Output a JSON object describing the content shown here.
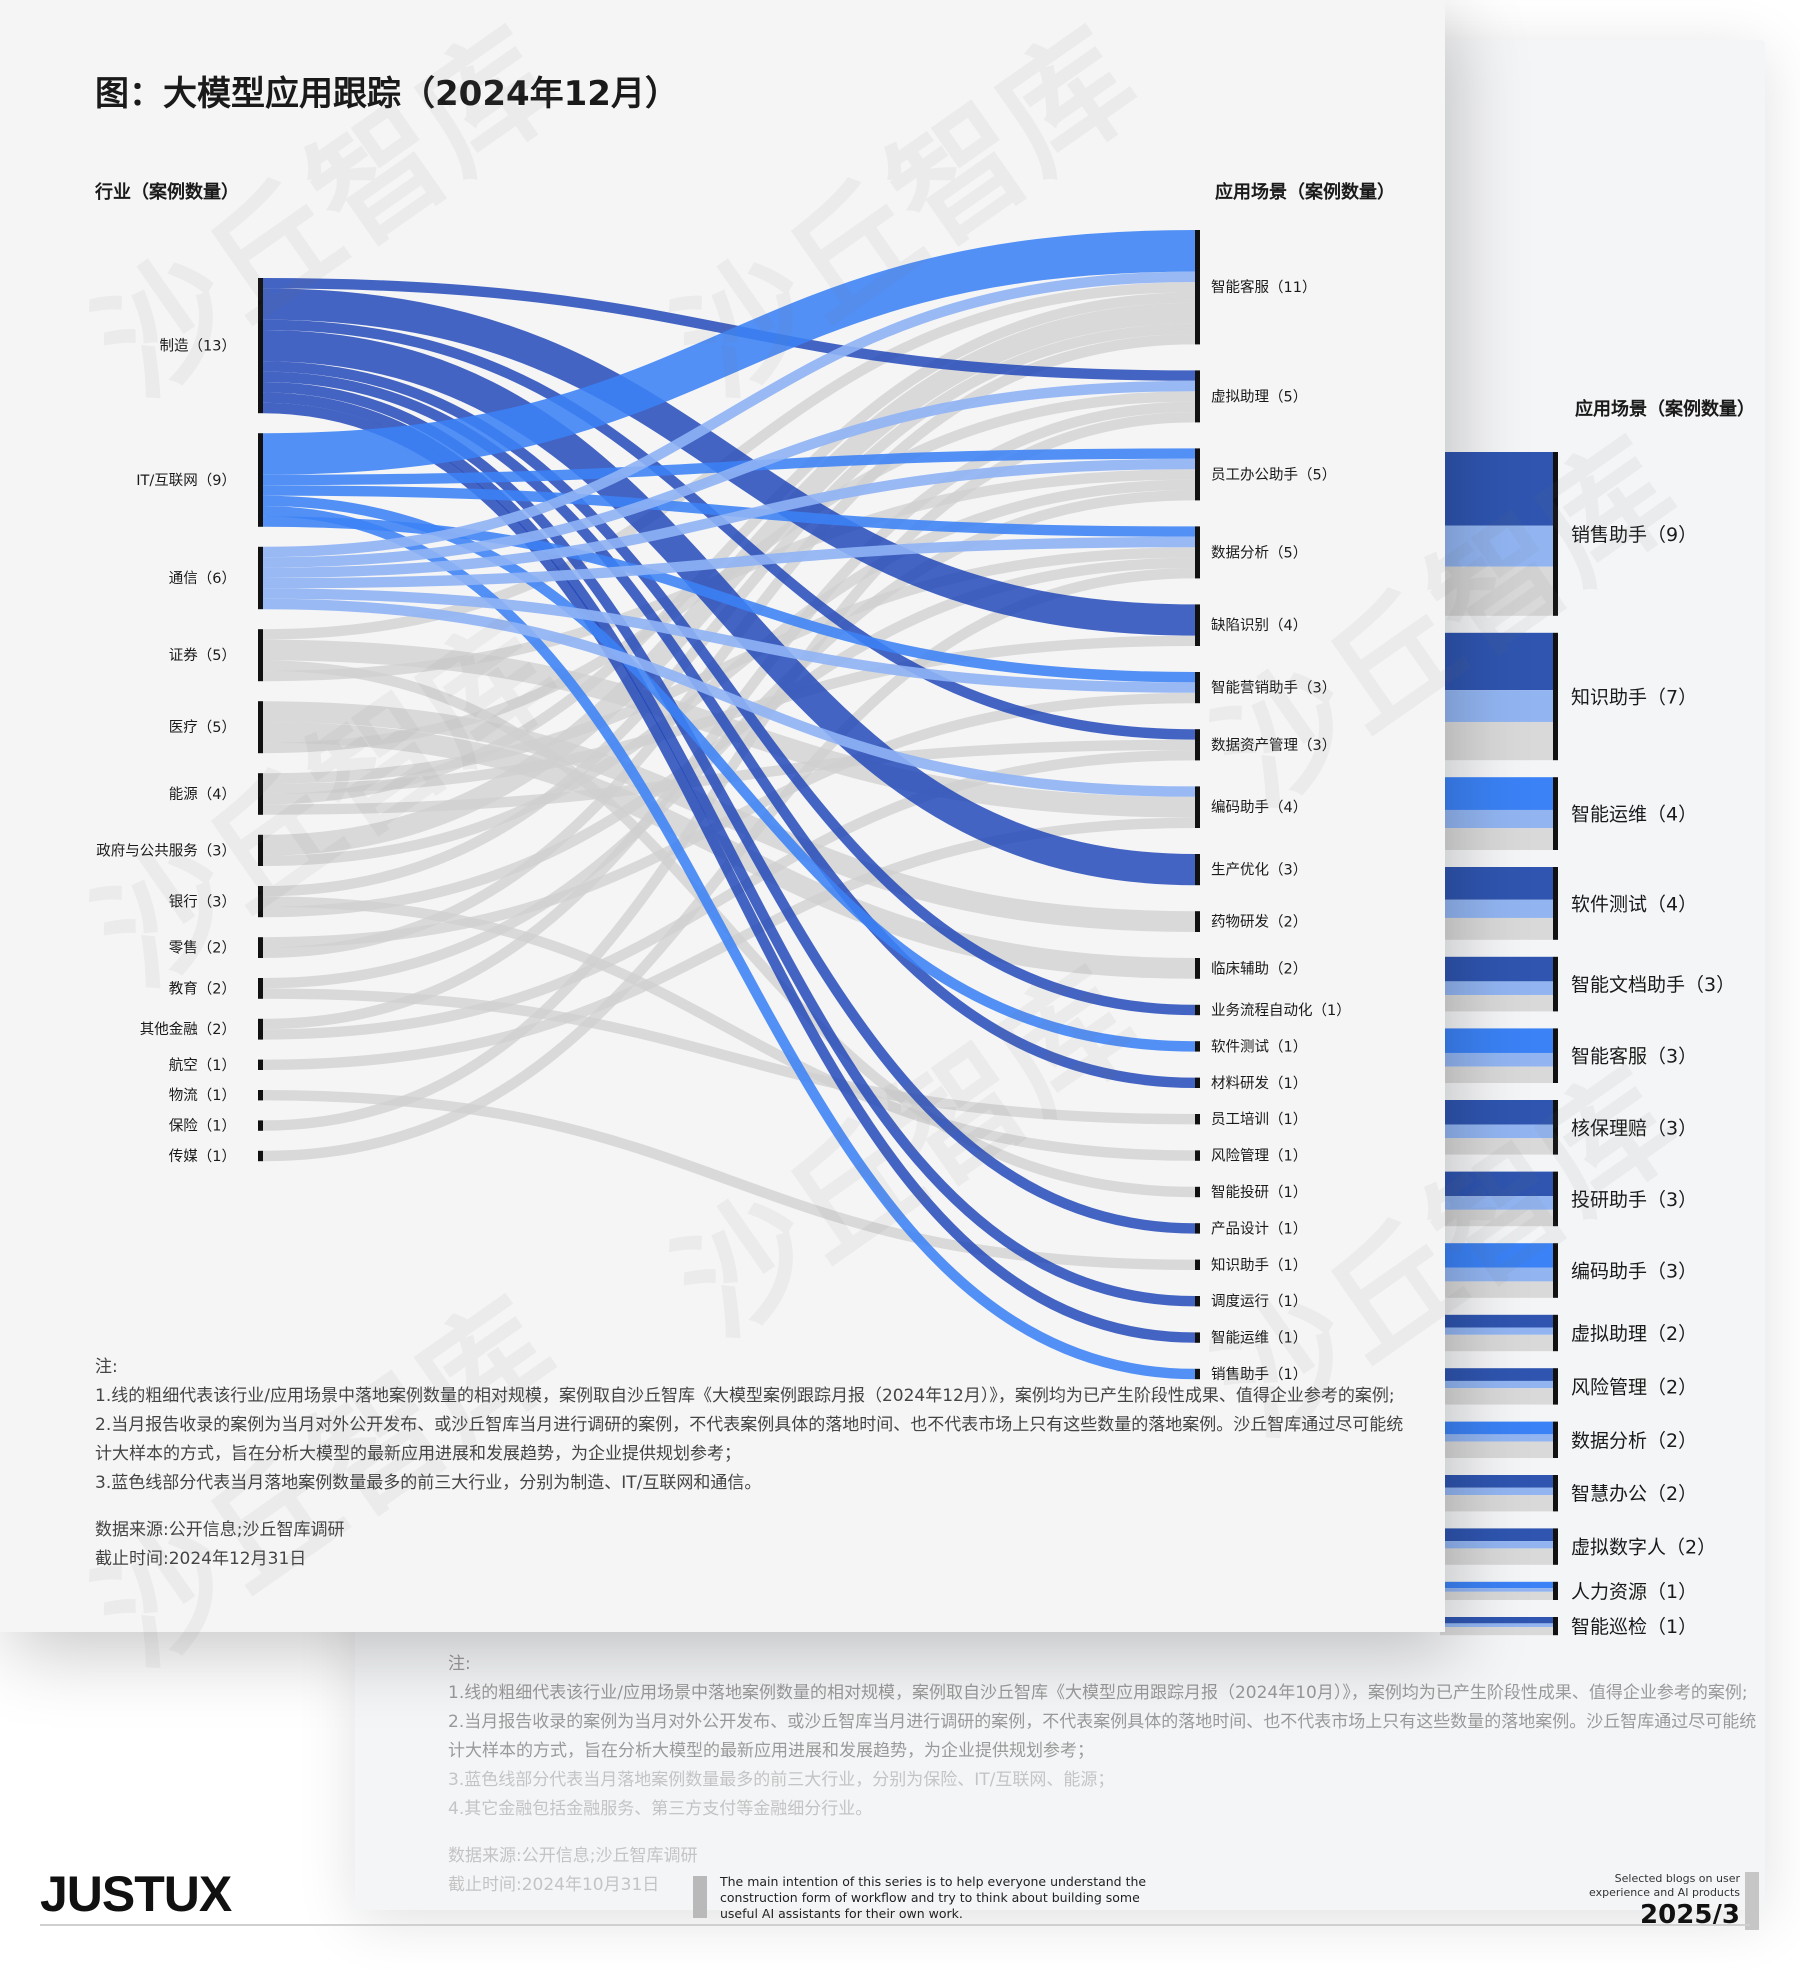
{
  "title": "图：大模型应用跟踪（2024年12月）",
  "left_header": "行业（案例数量）",
  "right_header": "应用场景（案例数量）",
  "back_header": "应用场景（案例数量）",
  "colors": {
    "manufacturing": "#1d44b8",
    "it": "#3b82f6",
    "telecom": "#8fb3f5",
    "other": "#cfcfcf",
    "node_bar": "#111111"
  },
  "industries": [
    {
      "label": "制造（13）",
      "count": 13
    },
    {
      "label": "IT/互联网（9）",
      "count": 9
    },
    {
      "label": "通信（6）",
      "count": 6
    },
    {
      "label": "证券（5）",
      "count": 5
    },
    {
      "label": "医疗（5）",
      "count": 5
    },
    {
      "label": "能源（4）",
      "count": 4
    },
    {
      "label": "政府与公共服务（3）",
      "count": 3
    },
    {
      "label": "银行（3）",
      "count": 3
    },
    {
      "label": "零售（2）",
      "count": 2
    },
    {
      "label": "教育（2）",
      "count": 2
    },
    {
      "label": "其他金融（2）",
      "count": 2
    },
    {
      "label": "航空（1）",
      "count": 1
    },
    {
      "label": "物流（1）",
      "count": 1
    },
    {
      "label": "保险（1）",
      "count": 1
    },
    {
      "label": "传媒（1）",
      "count": 1
    }
  ],
  "scenarios": [
    {
      "label": "智能客服（11）",
      "count": 11
    },
    {
      "label": "虚拟助理（5）",
      "count": 5
    },
    {
      "label": "员工办公助手（5）",
      "count": 5
    },
    {
      "label": "数据分析（5）",
      "count": 5
    },
    {
      "label": "缺陷识别（4）",
      "count": 4
    },
    {
      "label": "智能营销助手（3）",
      "count": 3
    },
    {
      "label": "数据资产管理（3）",
      "count": 3
    },
    {
      "label": "编码助手（4）",
      "count": 4
    },
    {
      "label": "生产优化（3）",
      "count": 3
    },
    {
      "label": "药物研发（2）",
      "count": 2
    },
    {
      "label": "临床辅助（2）",
      "count": 2
    },
    {
      "label": "业务流程自动化（1）",
      "count": 1
    },
    {
      "label": "软件测试（1）",
      "count": 1
    },
    {
      "label": "材料研发（1）",
      "count": 1
    },
    {
      "label": "员工培训（1）",
      "count": 1
    },
    {
      "label": "风险管理（1）",
      "count": 1
    },
    {
      "label": "智能投研（1）",
      "count": 1
    },
    {
      "label": "产品设计（1）",
      "count": 1
    },
    {
      "label": "知识助手（1）",
      "count": 1
    },
    {
      "label": "调度运行（1）",
      "count": 1
    },
    {
      "label": "智能运维（1）",
      "count": 1
    },
    {
      "label": "销售助手（1）",
      "count": 1
    }
  ],
  "flows": [
    {
      "from": 0,
      "to": 1,
      "value": 1
    },
    {
      "from": 0,
      "to": 4,
      "value": 3
    },
    {
      "from": 0,
      "to": 6,
      "value": 1
    },
    {
      "from": 0,
      "to": 8,
      "value": 3
    },
    {
      "from": 0,
      "to": 11,
      "value": 1
    },
    {
      "from": 0,
      "to": 13,
      "value": 1
    },
    {
      "from": 0,
      "to": 17,
      "value": 1
    },
    {
      "from": 0,
      "to": 19,
      "value": 1
    },
    {
      "from": 0,
      "to": 20,
      "value": 1
    },
    {
      "from": 1,
      "to": 0,
      "value": 4
    },
    {
      "from": 1,
      "to": 2,
      "value": 1
    },
    {
      "from": 1,
      "to": 3,
      "value": 1
    },
    {
      "from": 1,
      "to": 12,
      "value": 1
    },
    {
      "from": 1,
      "to": 21,
      "value": 1
    },
    {
      "from": 1,
      "to": 5,
      "value": 1
    },
    {
      "from": 2,
      "to": 0,
      "value": 1
    },
    {
      "from": 2,
      "to": 1,
      "value": 1
    },
    {
      "from": 2,
      "to": 2,
      "value": 1
    },
    {
      "from": 2,
      "to": 3,
      "value": 1
    },
    {
      "from": 2,
      "to": 5,
      "value": 1
    },
    {
      "from": 2,
      "to": 7,
      "value": 1
    },
    {
      "from": 3,
      "to": 0,
      "value": 1
    },
    {
      "from": 3,
      "to": 7,
      "value": 2
    },
    {
      "from": 3,
      "to": 16,
      "value": 1
    },
    {
      "from": 3,
      "to": 2,
      "value": 1
    },
    {
      "from": 4,
      "to": 9,
      "value": 2
    },
    {
      "from": 4,
      "to": 10,
      "value": 2
    },
    {
      "from": 4,
      "to": 1,
      "value": 1
    },
    {
      "from": 5,
      "to": 3,
      "value": 1
    },
    {
      "from": 5,
      "to": 4,
      "value": 1
    },
    {
      "from": 5,
      "to": 0,
      "value": 1
    },
    {
      "from": 5,
      "to": 6,
      "value": 1
    },
    {
      "from": 6,
      "to": 0,
      "value": 2
    },
    {
      "from": 6,
      "to": 2,
      "value": 1
    },
    {
      "from": 7,
      "to": 0,
      "value": 1
    },
    {
      "from": 7,
      "to": 15,
      "value": 1
    },
    {
      "from": 7,
      "to": 3,
      "value": 1
    },
    {
      "from": 8,
      "to": 5,
      "value": 1
    },
    {
      "from": 8,
      "to": 0,
      "value": 1
    },
    {
      "from": 9,
      "to": 2,
      "value": 1
    },
    {
      "from": 9,
      "to": 14,
      "value": 1
    },
    {
      "from": 10,
      "to": 1,
      "value": 1
    },
    {
      "from": 10,
      "to": 6,
      "value": 1
    },
    {
      "from": 11,
      "to": 7,
      "value": 1
    },
    {
      "from": 12,
      "to": 18,
      "value": 1
    },
    {
      "from": 13,
      "to": 1,
      "value": 1
    },
    {
      "from": 14,
      "to": 3,
      "value": 1
    }
  ],
  "notes": [
    "注:",
    "1.线的粗细代表该行业/应用场景中落地案例数量的相对规模，案例取自沙丘智库《大模型案例跟踪月报（2024年12月）》，案例均为已产生阶段性成果、值得企业参考的案例;",
    "2.当月报告收录的案例为当月对外公开发布、或沙丘智库当月进行调研的案例，不代表案例具体的落地时间、也不代表市场上只有这些数量的落地案例。沙丘智库通过尽可能统计大样本的方式，旨在分析大模型的最新应用进展和发展趋势，为企业提供规划参考；",
    "3.蓝色线部分代表当月落地案例数量最多的前三大行业，分别为制造、IT/互联网和通信。"
  ],
  "source": "数据来源:公开信息;沙丘智库调研",
  "deadline": "截止时间:2024年12月31日",
  "back_scenarios": [
    {
      "label": "销售助手（9）",
      "count": 9
    },
    {
      "label": "知识助手（7）",
      "count": 7
    },
    {
      "label": "智能运维（4）",
      "count": 4
    },
    {
      "label": "软件测试（4）",
      "count": 4
    },
    {
      "label": "智能文档助手（3）",
      "count": 3
    },
    {
      "label": "智能客服（3）",
      "count": 3
    },
    {
      "label": "核保理赔（3）",
      "count": 3
    },
    {
      "label": "投研助手（3）",
      "count": 3
    },
    {
      "label": "编码助手（3）",
      "count": 3
    },
    {
      "label": "虚拟助理（2）",
      "count": 2
    },
    {
      "label": "风险管理（2）",
      "count": 2
    },
    {
      "label": "数据分析（2）",
      "count": 2
    },
    {
      "label": "智慧办公（2）",
      "count": 2
    },
    {
      "label": "虚拟数字人（2）",
      "count": 2
    },
    {
      "label": "人力资源（1）",
      "count": 1
    },
    {
      "label": "智能巡检（1）",
      "count": 1
    }
  ],
  "back_notes": [
    "注:",
    "1.线的粗细代表该行业/应用场景中落地案例数量的相对规模，案例取自沙丘智库《大模型应用跟踪月报（2024年10月）》，案例均为已产生阶段性成果、值得企业参考的案例;",
    "2.当月报告收录的案例为当月对外公开发布、或沙丘智库当月进行调研的案例，不代表案例具体的落地时间、也不代表市场上只有这些数量的落地案例。沙丘智库通过尽可能统计大样本的方式，旨在分析大模型的最新应用进展和发展趋势，为企业提供规划参考；",
    "3.蓝色线部分代表当月落地案例数量最多的前三大行业，分别为保险、IT/互联网、能源；",
    "4.其它金融包括金融服务、第三方支付等金融细分行业。"
  ],
  "back_source": "数据来源:公开信息;沙丘智库调研",
  "back_deadline": "截止时间:2024年10月31日",
  "watermark": "沙丘智库",
  "footer": {
    "logo": "JUSTUX",
    "description": "The main intention of this series is to help everyone understand the construction form of workflow and try to think about building some useful AI assistants for their own work.",
    "tagline": "Selected blogs on user experience and AI products",
    "date": "2025/3"
  }
}
